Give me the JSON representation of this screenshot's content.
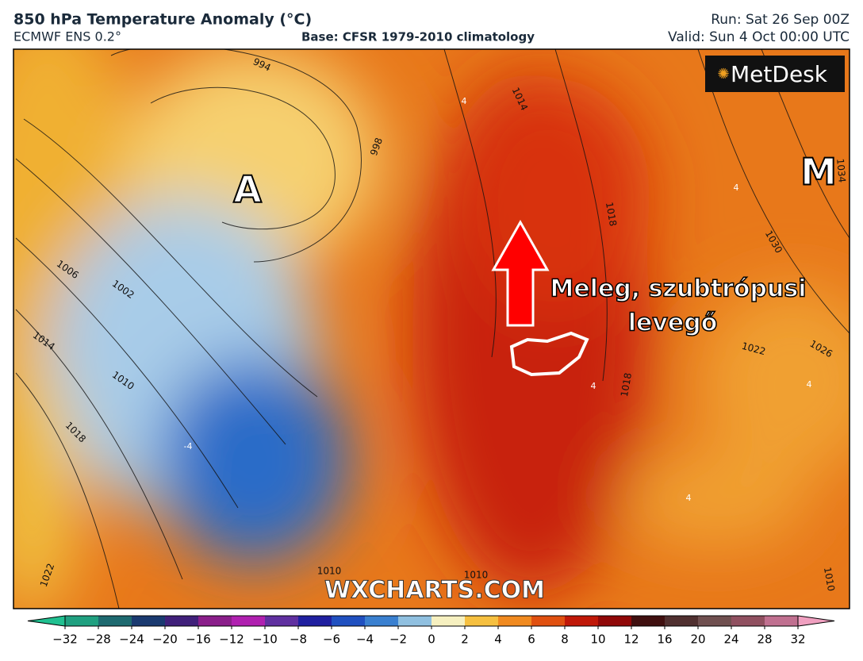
{
  "header": {
    "title": "850 hPa Temperature Anomaly (°C)",
    "model": "ECMWF ENS 0.2°",
    "base": "Base: CFSR 1979-2010 climatology",
    "run": "Run: Sat 26 Sep 00Z",
    "valid": "Valid: Sun 4 Oct 00:00 UTC"
  },
  "map": {
    "logo": "MetDesk",
    "watermark": "WXCHARTS.COM",
    "high_label": "M",
    "low_label": "A",
    "annotation": [
      "Meleg, szubtrópusi",
      "levegő"
    ],
    "isobar_labels": [
      994,
      998,
      1002,
      1006,
      1010,
      1014,
      1018,
      1022,
      1014,
      1018,
      1030,
      1034,
      1026,
      1022,
      1018,
      1010,
      1010,
      1010
    ],
    "anomaly_labels": [
      -4,
      4,
      4,
      4,
      4,
      4
    ]
  },
  "colorbar": {
    "ticks": [
      {
        "value": -32,
        "label": "−32"
      },
      {
        "value": -28,
        "label": "−28"
      },
      {
        "value": -24,
        "label": "−24"
      },
      {
        "value": -20,
        "label": "−20"
      },
      {
        "value": -16,
        "label": "−16"
      },
      {
        "value": -12,
        "label": "−12"
      },
      {
        "value": -10,
        "label": "−10"
      },
      {
        "value": -8,
        "label": "−8"
      },
      {
        "value": -6,
        "label": "−6"
      },
      {
        "value": -4,
        "label": "−4"
      },
      {
        "value": -2,
        "label": "−2"
      },
      0,
      2,
      4,
      6,
      8,
      10,
      12,
      16,
      20,
      24,
      28,
      32
    ]
  }
}
